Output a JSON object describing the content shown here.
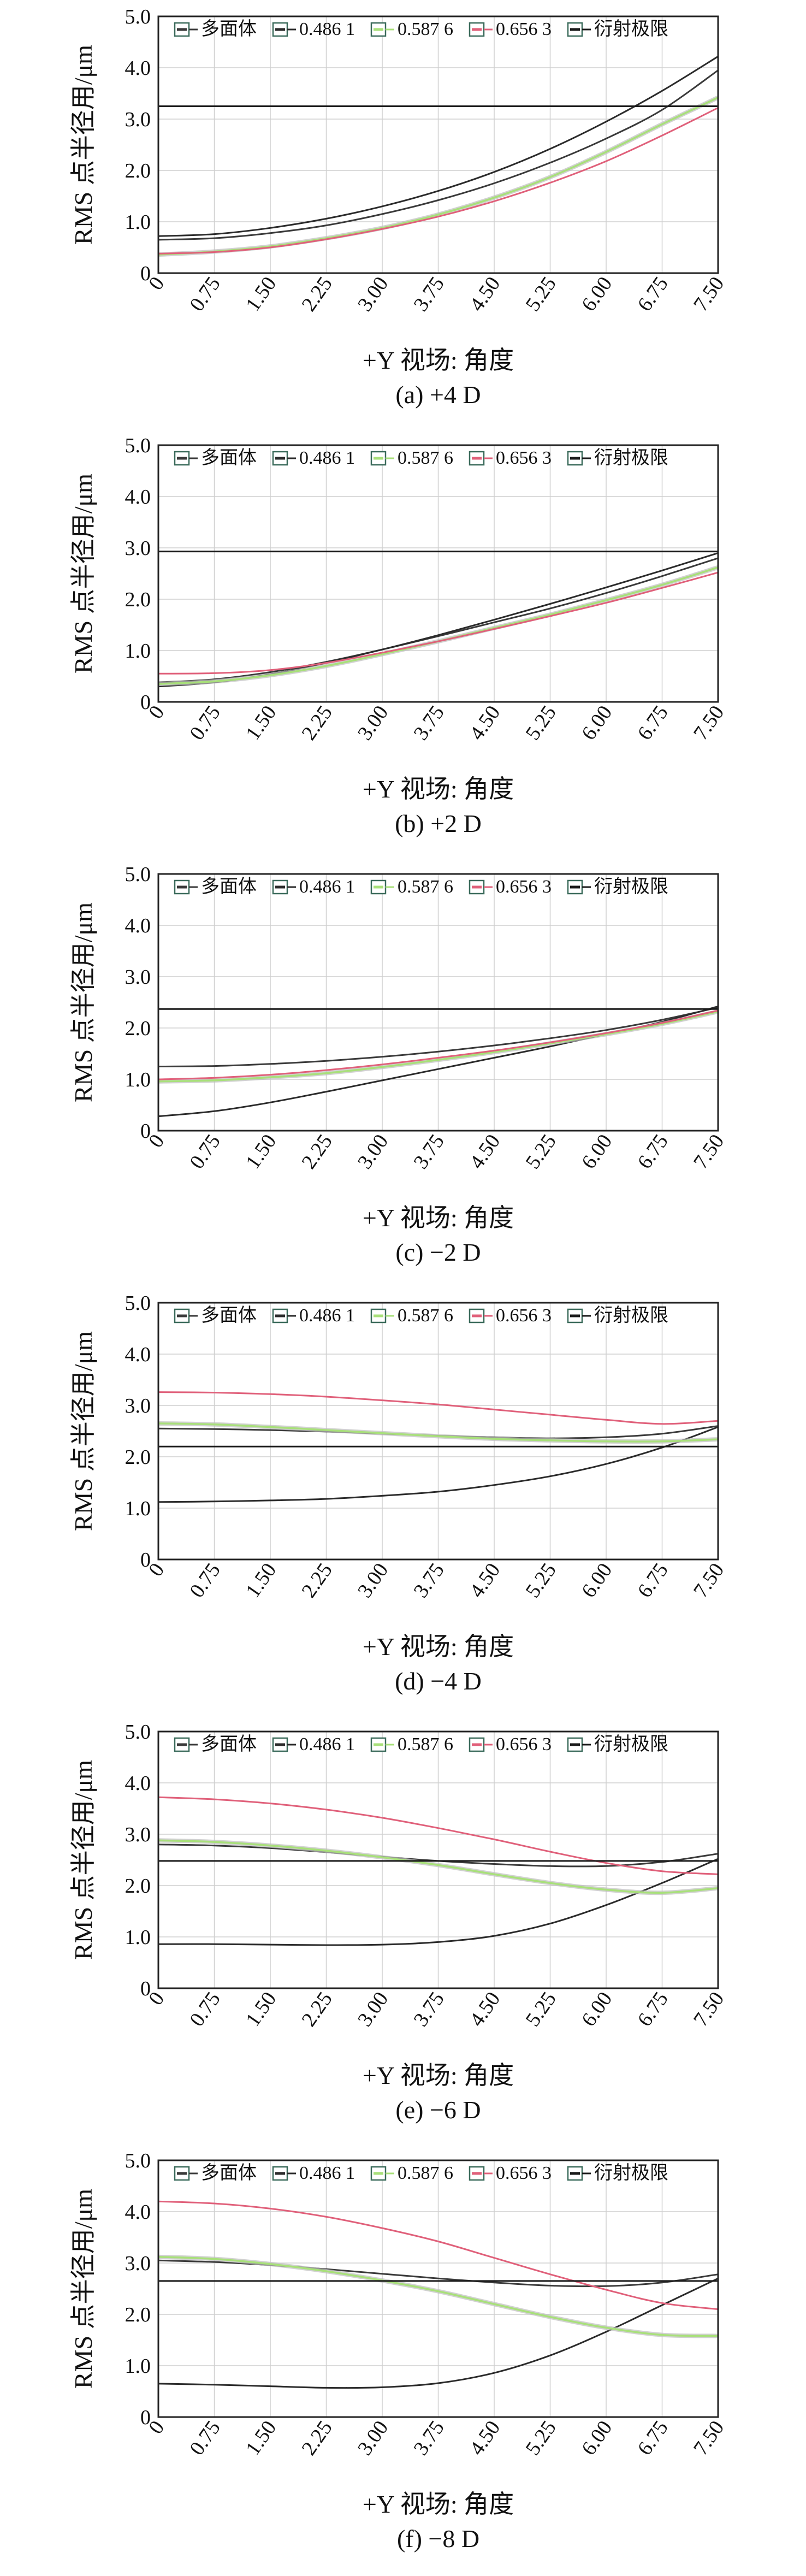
{
  "chart_data": [
    {
      "type": "line",
      "caption": "(a) +4 D",
      "xlabel": "+Y 视场: 角度",
      "ylabel": "RMS 点半径用/μm",
      "xlim": [
        0,
        7.5
      ],
      "ylim": [
        0,
        5.0
      ],
      "x_ticks": [
        "0",
        "0.75",
        "1.50",
        "2.25",
        "3.00",
        "3.75",
        "4.50",
        "5.25",
        "6.00",
        "6.75",
        "7.50"
      ],
      "y_ticks": [
        "0",
        "1.0",
        "2.0",
        "3.0",
        "4.0",
        "5.0"
      ],
      "grid": true,
      "legend_position": "top",
      "x": [
        0,
        0.75,
        1.5,
        2.25,
        3.0,
        3.75,
        4.5,
        5.25,
        6.0,
        6.75,
        7.5
      ],
      "series": [
        {
          "name": "多面体",
          "values": [
            0.65,
            0.68,
            0.78,
            0.93,
            1.15,
            1.42,
            1.75,
            2.15,
            2.62,
            3.18,
            3.95
          ]
        },
        {
          "name": "0.486 1",
          "values": [
            0.72,
            0.76,
            0.88,
            1.06,
            1.3,
            1.6,
            1.97,
            2.42,
            2.95,
            3.55,
            4.22
          ]
        },
        {
          "name": "0.587 6",
          "values": [
            0.36,
            0.42,
            0.52,
            0.68,
            0.88,
            1.14,
            1.47,
            1.87,
            2.36,
            2.9,
            3.42
          ]
        },
        {
          "name": "0.656 3",
          "values": [
            0.38,
            0.41,
            0.5,
            0.66,
            0.86,
            1.1,
            1.4,
            1.76,
            2.18,
            2.68,
            3.22
          ]
        },
        {
          "name": "衍射极限",
          "values": [
            3.25,
            3.25,
            3.25,
            3.25,
            3.25,
            3.25,
            3.25,
            3.25,
            3.25,
            3.25,
            3.25
          ]
        }
      ]
    },
    {
      "type": "line",
      "caption": "(b) +2 D",
      "xlabel": "+Y 视场: 角度",
      "ylabel": "RMS 点半径用/μm",
      "xlim": [
        0,
        7.5
      ],
      "ylim": [
        0,
        5.0
      ],
      "x_ticks": [
        "0",
        "0.75",
        "1.50",
        "2.25",
        "3.00",
        "3.75",
        "4.50",
        "5.25",
        "6.00",
        "6.75",
        "7.50"
      ],
      "y_ticks": [
        "0",
        "1.0",
        "2.0",
        "3.0",
        "4.0",
        "5.0"
      ],
      "grid": true,
      "legend_position": "top",
      "x": [
        0,
        0.75,
        1.5,
        2.25,
        3.0,
        3.75,
        4.5,
        5.25,
        6.0,
        6.75,
        7.5
      ],
      "series": [
        {
          "name": "多面体",
          "values": [
            0.38,
            0.44,
            0.58,
            0.78,
            1.02,
            1.28,
            1.55,
            1.82,
            2.12,
            2.45,
            2.8
          ]
        },
        {
          "name": "0.486 1",
          "values": [
            0.3,
            0.38,
            0.54,
            0.76,
            1.02,
            1.3,
            1.6,
            1.91,
            2.23,
            2.56,
            2.9
          ]
        },
        {
          "name": "0.587 6",
          "values": [
            0.35,
            0.4,
            0.52,
            0.7,
            0.93,
            1.18,
            1.44,
            1.7,
            1.98,
            2.28,
            2.62
          ]
        },
        {
          "name": "0.656 3",
          "values": [
            0.55,
            0.56,
            0.62,
            0.76,
            0.96,
            1.18,
            1.42,
            1.67,
            1.93,
            2.22,
            2.52
          ]
        },
        {
          "name": "衍射极限",
          "values": [
            2.93,
            2.93,
            2.93,
            2.93,
            2.93,
            2.93,
            2.93,
            2.93,
            2.93,
            2.93,
            2.93
          ]
        }
      ]
    },
    {
      "type": "line",
      "caption": "(c) −2 D",
      "xlabel": "+Y 视场: 角度",
      "ylabel": "RMS 点半径用/μm",
      "xlim": [
        0,
        7.5
      ],
      "ylim": [
        0,
        5.0
      ],
      "x_ticks": [
        "0",
        "0.75",
        "1.50",
        "2.25",
        "3.00",
        "3.75",
        "4.50",
        "5.25",
        "6.00",
        "6.75",
        "7.50"
      ],
      "y_ticks": [
        "0",
        "1.0",
        "2.0",
        "3.0",
        "4.0",
        "5.0"
      ],
      "grid": true,
      "legend_position": "top",
      "x": [
        0,
        0.75,
        1.5,
        2.25,
        3.0,
        3.75,
        4.5,
        5.25,
        6.0,
        6.75,
        7.5
      ],
      "series": [
        {
          "name": "多面体",
          "values": [
            1.25,
            1.26,
            1.3,
            1.36,
            1.44,
            1.54,
            1.66,
            1.8,
            1.96,
            2.16,
            2.4
          ]
        },
        {
          "name": "0.486 1",
          "values": [
            0.28,
            0.38,
            0.55,
            0.76,
            0.98,
            1.2,
            1.42,
            1.64,
            1.88,
            2.12,
            2.42
          ]
        },
        {
          "name": "0.587 6",
          "values": [
            0.96,
            0.98,
            1.04,
            1.12,
            1.24,
            1.38,
            1.53,
            1.7,
            1.88,
            2.08,
            2.32
          ]
        },
        {
          "name": "0.656 3",
          "values": [
            1.0,
            1.03,
            1.09,
            1.18,
            1.29,
            1.42,
            1.56,
            1.72,
            1.9,
            2.1,
            2.34
          ]
        },
        {
          "name": "衍射极限",
          "values": [
            2.37,
            2.37,
            2.37,
            2.37,
            2.37,
            2.37,
            2.37,
            2.37,
            2.37,
            2.37,
            2.37
          ]
        }
      ]
    },
    {
      "type": "line",
      "caption": "(d) −4 D",
      "xlabel": "+Y 视场: 角度",
      "ylabel": "RMS 点半径用/μm",
      "xlim": [
        0,
        7.5
      ],
      "ylim": [
        0,
        5.0
      ],
      "x_ticks": [
        "0",
        "0.75",
        "1.50",
        "2.25",
        "3.00",
        "3.75",
        "4.50",
        "5.25",
        "6.00",
        "6.75",
        "7.50"
      ],
      "y_ticks": [
        "0",
        "1.0",
        "2.0",
        "3.0",
        "4.0",
        "5.0"
      ],
      "grid": true,
      "legend_position": "top",
      "x": [
        0,
        0.75,
        1.5,
        2.25,
        3.0,
        3.75,
        4.5,
        5.25,
        6.0,
        6.75,
        7.5
      ],
      "series": [
        {
          "name": "多面体",
          "values": [
            2.55,
            2.54,
            2.52,
            2.49,
            2.45,
            2.41,
            2.38,
            2.36,
            2.38,
            2.45,
            2.6
          ]
        },
        {
          "name": "0.486 1",
          "values": [
            1.12,
            1.13,
            1.15,
            1.18,
            1.24,
            1.32,
            1.45,
            1.62,
            1.86,
            2.18,
            2.58
          ]
        },
        {
          "name": "0.587 6",
          "values": [
            2.65,
            2.63,
            2.58,
            2.52,
            2.46,
            2.4,
            2.35,
            2.32,
            2.3,
            2.3,
            2.34
          ]
        },
        {
          "name": "0.656 3",
          "values": [
            3.26,
            3.25,
            3.22,
            3.17,
            3.1,
            3.02,
            2.92,
            2.82,
            2.72,
            2.64,
            2.7
          ]
        },
        {
          "name": "衍射极限",
          "values": [
            2.2,
            2.2,
            2.2,
            2.2,
            2.2,
            2.2,
            2.2,
            2.2,
            2.2,
            2.2,
            2.2
          ]
        }
      ]
    },
    {
      "type": "line",
      "caption": "(e) −6 D",
      "xlabel": "+Y 视场: 角度",
      "ylabel": "RMS 点半径用/μm",
      "xlim": [
        0,
        7.5
      ],
      "ylim": [
        0,
        5.0
      ],
      "x_ticks": [
        "0",
        "0.75",
        "1.50",
        "2.25",
        "3.00",
        "3.75",
        "4.50",
        "5.25",
        "6.00",
        "6.75",
        "7.50"
      ],
      "y_ticks": [
        "0",
        "1.0",
        "2.0",
        "3.0",
        "4.0",
        "5.0"
      ],
      "grid": true,
      "legend_position": "top",
      "x": [
        0,
        0.75,
        1.5,
        2.25,
        3.0,
        3.75,
        4.5,
        5.25,
        6.0,
        6.75,
        7.5
      ],
      "series": [
        {
          "name": "多面体",
          "values": [
            2.8,
            2.78,
            2.73,
            2.65,
            2.56,
            2.48,
            2.42,
            2.38,
            2.38,
            2.46,
            2.62
          ]
        },
        {
          "name": "0.486 1",
          "values": [
            0.86,
            0.86,
            0.85,
            0.84,
            0.85,
            0.9,
            1.02,
            1.26,
            1.62,
            2.05,
            2.52
          ]
        },
        {
          "name": "0.587 6",
          "values": [
            2.88,
            2.85,
            2.78,
            2.68,
            2.55,
            2.4,
            2.22,
            2.05,
            1.92,
            1.86,
            1.95
          ]
        },
        {
          "name": "0.656 3",
          "values": [
            3.72,
            3.68,
            3.6,
            3.48,
            3.32,
            3.12,
            2.9,
            2.66,
            2.44,
            2.28,
            2.22
          ]
        },
        {
          "name": "衍射极限",
          "values": [
            2.48,
            2.48,
            2.48,
            2.48,
            2.48,
            2.48,
            2.48,
            2.48,
            2.48,
            2.48,
            2.48
          ]
        }
      ]
    },
    {
      "type": "line",
      "caption": "(f) −8 D",
      "xlabel": "+Y 视场: 角度",
      "ylabel": "RMS 点半径用/μm",
      "xlim": [
        0,
        7.5
      ],
      "ylim": [
        0,
        5.0
      ],
      "x_ticks": [
        "0",
        "0.75",
        "1.50",
        "2.25",
        "3.00",
        "3.75",
        "4.50",
        "5.25",
        "6.00",
        "6.75",
        "7.50"
      ],
      "y_ticks": [
        "0",
        "1.0",
        "2.0",
        "3.0",
        "4.0",
        "5.0"
      ],
      "grid": true,
      "legend_position": "top",
      "x": [
        0,
        0.75,
        1.5,
        2.25,
        3.0,
        3.75,
        4.5,
        5.25,
        6.0,
        6.75,
        7.5
      ],
      "series": [
        {
          "name": "多面体",
          "values": [
            3.05,
            3.02,
            2.96,
            2.88,
            2.79,
            2.7,
            2.62,
            2.56,
            2.55,
            2.62,
            2.78
          ]
        },
        {
          "name": "0.486 1",
          "values": [
            0.65,
            0.63,
            0.6,
            0.57,
            0.58,
            0.66,
            0.86,
            1.2,
            1.66,
            2.18,
            2.7
          ]
        },
        {
          "name": "0.587 6",
          "values": [
            3.12,
            3.08,
            2.98,
            2.84,
            2.66,
            2.45,
            2.2,
            1.95,
            1.74,
            1.6,
            1.58
          ]
        },
        {
          "name": "0.656 3",
          "values": [
            4.2,
            4.16,
            4.06,
            3.9,
            3.68,
            3.42,
            3.1,
            2.78,
            2.48,
            2.22,
            2.1
          ]
        },
        {
          "name": "衍射极限",
          "values": [
            2.65,
            2.65,
            2.65,
            2.65,
            2.65,
            2.65,
            2.65,
            2.65,
            2.65,
            2.65,
            2.65
          ]
        }
      ]
    }
  ],
  "colors": {
    "多面体": "#3a3a3a",
    "0.486 1": "#2b2b2b",
    "0.587 6": "#a8e07a",
    "0.656 3": "#e0607a",
    "衍射极限": "#1a1a1a",
    "grid": "#cfcfcf",
    "frame": "#222222"
  }
}
